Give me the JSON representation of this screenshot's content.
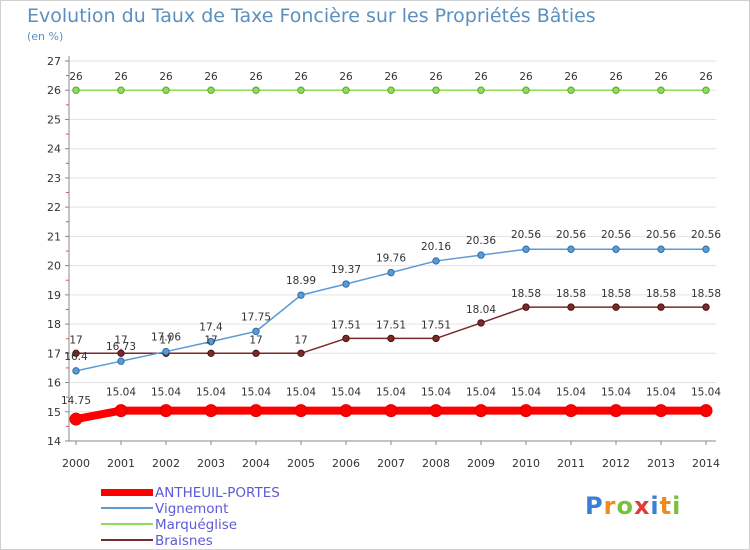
{
  "header": {
    "title": "Evolution du Taux de Taxe Foncière sur les Propriétés Bâties",
    "subtitle": "(en %)"
  },
  "logo": {
    "text": "Proxiti",
    "letters": [
      "P",
      "r",
      "o",
      "x",
      "i",
      "t",
      "i"
    ],
    "colors": [
      "#3a7fd5",
      "#f08a1c",
      "#7cbf3a",
      "#e23b3b",
      "#3a7fd5",
      "#f08a1c",
      "#7cbf3a"
    ]
  },
  "chart_data": {
    "type": "line",
    "title": "Evolution du Taux de Taxe Foncière sur les Propriétés Bâties",
    "ylabel": "(en %)",
    "xlabel": "",
    "x": [
      "2000",
      "2001",
      "2002",
      "2003",
      "2004",
      "2005",
      "2006",
      "2007",
      "2008",
      "2009",
      "2010",
      "2011",
      "2012",
      "2013",
      "2014"
    ],
    "ylim": [
      14,
      27
    ],
    "yticks": [
      "14",
      "15",
      "16",
      "17",
      "18",
      "19",
      "20",
      "21",
      "22",
      "23",
      "24",
      "25",
      "26",
      "27"
    ],
    "grid": "horizontal",
    "legend_position": "bottom-left",
    "series": [
      {
        "name": "ANTHEUIL-PORTES",
        "color": "#ff0000",
        "values": [
          14.75,
          15.04,
          15.04,
          15.04,
          15.04,
          15.04,
          15.04,
          15.04,
          15.04,
          15.04,
          15.04,
          15.04,
          15.04,
          15.04,
          15.04
        ],
        "labels": [
          "14.75",
          "15.04",
          "15.04",
          "15.04",
          "15.04",
          "15.04",
          "15.04",
          "15.04",
          "15.04",
          "15.04",
          "15.04",
          "15.04",
          "15.04",
          "15.04",
          "15.04"
        ]
      },
      {
        "name": "Vignemont",
        "color": "#5b9bd5",
        "values": [
          16.4,
          16.73,
          17.06,
          17.4,
          17.75,
          18.99,
          19.37,
          19.76,
          20.16,
          20.36,
          20.56,
          20.56,
          20.56,
          20.56,
          20.56
        ],
        "labels": [
          "16.4",
          "16.73",
          "17.06",
          "17.4",
          "17.75",
          "18.99",
          "19.37",
          "19.76",
          "20.16",
          "20.36",
          "20.56",
          "20.56",
          "20.56",
          "20.56",
          "20.56"
        ]
      },
      {
        "name": "Marquéglise",
        "color": "#8fdb5c",
        "values": [
          26,
          26,
          26,
          26,
          26,
          26,
          26,
          26,
          26,
          26,
          26,
          26,
          26,
          26,
          26
        ],
        "labels": [
          "26",
          "26",
          "26",
          "26",
          "26",
          "26",
          "26",
          "26",
          "26",
          "26",
          "26",
          "26",
          "26",
          "26",
          "26"
        ]
      },
      {
        "name": "Braisnes",
        "color": "#7a2a2a",
        "values": [
          17,
          17,
          17,
          17,
          17,
          17,
          17.51,
          17.51,
          17.51,
          18.04,
          18.58,
          18.58,
          18.58,
          18.58,
          18.58
        ],
        "labels": [
          "17",
          "17",
          "17",
          "17",
          "17",
          "17",
          "17.51",
          "17.51",
          "17.51",
          "18.04",
          "18.58",
          "18.58",
          "18.58",
          "18.58",
          "18.58"
        ]
      }
    ]
  }
}
